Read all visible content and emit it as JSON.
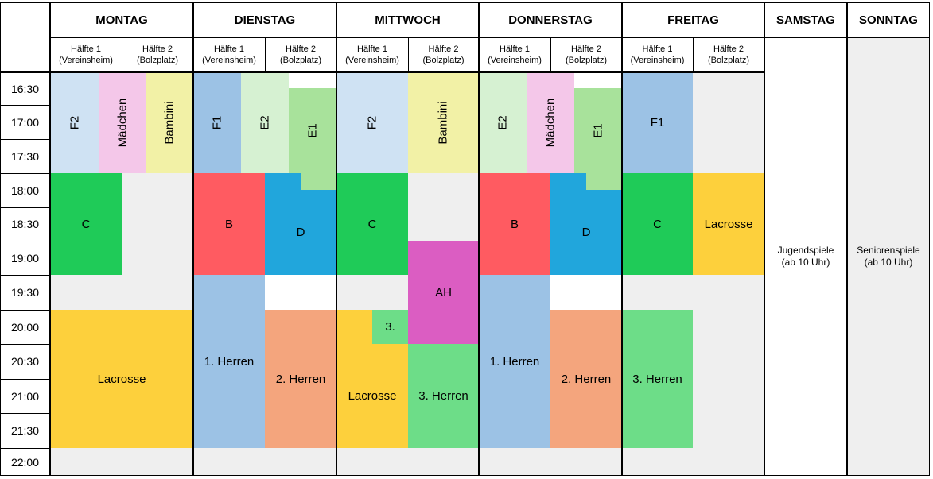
{
  "days": [
    "MONTAG",
    "DIENSTAG",
    "MITTWOCH",
    "DONNERSTAG",
    "FREITAG",
    "SAMSTAG",
    "SONNTAG"
  ],
  "halves": {
    "h1_label": "Hälfte 1",
    "h1_place": "(Vereinsheim)",
    "h2_label": "Hälfte 2",
    "h2_place": "(Bolzplatz)"
  },
  "times": [
    "16:30",
    "17:00",
    "17:30",
    "18:00",
    "18:30",
    "19:00",
    "19:30",
    "20:00",
    "20:30",
    "21:00",
    "21:30",
    "22:00"
  ],
  "weekend": {
    "saturday": [
      "Jugendspiele",
      "(ab 10 Uhr)"
    ],
    "sunday": [
      "Seniorenspiele",
      "(ab 10 Uhr)"
    ]
  },
  "colors": {
    "grey": "#efefef",
    "light_blue": "#cfe2f3",
    "pink": "#f4c7e9",
    "yellow_pale": "#f2f1a6",
    "blue_mid": "#9cc2e5",
    "green_pale": "#d6f1d2",
    "green_light": "#a8e29b",
    "green_dark": "#1fcb58",
    "orange_yellow": "#fdd03c",
    "red": "#ff5b61",
    "cyan_blue": "#21a6dc",
    "magenta": "#db5dc2",
    "salmon": "#f4a57d",
    "green_mid": "#6ddd88"
  },
  "blocks": [
    {
      "label": "F2",
      "vertical": true
    },
    {
      "label": "Mädchen",
      "vertical": true
    },
    {
      "label": "Bambini",
      "vertical": true
    },
    {
      "label": "C"
    },
    {
      "label": "Lacrosse"
    },
    {
      "label": "F1",
      "vertical": true
    },
    {
      "label": "E2",
      "vertical": true
    },
    {
      "label": "E1",
      "vertical": true
    },
    {
      "label": "B"
    },
    {
      "label": "D"
    },
    {
      "label": "1. Herren"
    },
    {
      "label": "2. Herren"
    },
    {
      "label": "F2",
      "vertical": true
    },
    {
      "label": "Bambini",
      "vertical": true
    },
    {
      "label": "C"
    },
    {
      "label": "AH"
    },
    {
      "label": "3."
    },
    {
      "label": "Lacrosse"
    },
    {
      "label": "3. Herren"
    },
    {
      "label": "E2",
      "vertical": true
    },
    {
      "label": "Mädchen",
      "vertical": true
    },
    {
      "label": "E1",
      "vertical": true
    },
    {
      "label": "B"
    },
    {
      "label": "D"
    },
    {
      "label": "1. Herren"
    },
    {
      "label": "2. Herren"
    },
    {
      "label": "F1"
    },
    {
      "label": "C"
    },
    {
      "label": "Lacrosse"
    },
    {
      "label": "3. Herren"
    }
  ]
}
